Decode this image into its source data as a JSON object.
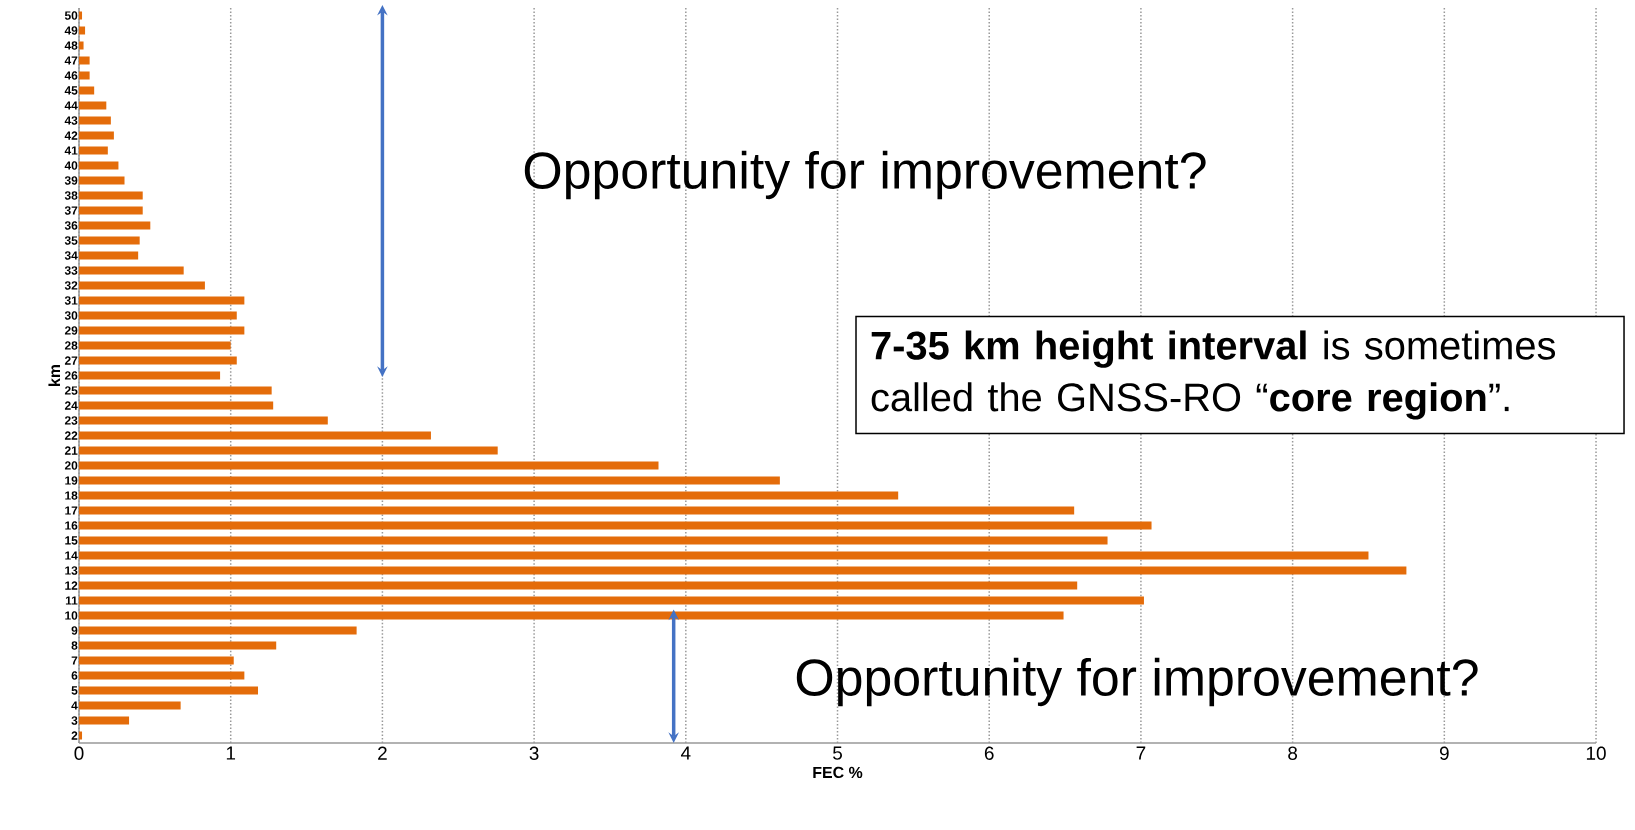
{
  "chart_data": {
    "type": "bar",
    "orientation": "horizontal",
    "xlabel": "FEC %",
    "ylabel": "km",
    "categories": [
      "50",
      "49",
      "48",
      "47",
      "46",
      "45",
      "44",
      "43",
      "42",
      "41",
      "40",
      "39",
      "38",
      "37",
      "36",
      "35",
      "34",
      "33",
      "32",
      "31",
      "30",
      "29",
      "28",
      "27",
      "26",
      "25",
      "24",
      "23",
      "22",
      "21",
      "20",
      "19",
      "18",
      "17",
      "16",
      "15",
      "14",
      "13",
      "12",
      "11",
      "10",
      "9",
      "8",
      "7",
      "6",
      "5",
      "4",
      "3",
      "2"
    ],
    "values": [
      0.02,
      0.04,
      0.03,
      0.07,
      0.07,
      0.1,
      0.18,
      0.21,
      0.23,
      0.19,
      0.26,
      0.3,
      0.42,
      0.42,
      0.47,
      0.4,
      0.39,
      0.69,
      0.83,
      1.09,
      1.04,
      1.09,
      1.0,
      1.04,
      0.93,
      1.27,
      1.28,
      1.64,
      2.32,
      2.76,
      3.82,
      4.62,
      5.4,
      6.56,
      7.07,
      6.78,
      8.5,
      8.75,
      6.58,
      7.02,
      6.49,
      1.83,
      1.3,
      1.02,
      1.09,
      1.18,
      0.67,
      0.33,
      0.02
    ],
    "color": "#e46c0a",
    "xlim": [
      0,
      10
    ],
    "xticks": [
      0,
      1,
      2,
      3,
      4,
      5,
      6,
      7,
      8,
      9,
      10
    ],
    "grid": "x",
    "annotations": [
      "Opportunity for improvement?",
      "**7-35 km height interval** is sometimes called the GNSS-RO “**core region**”.",
      "Opportunity for improvement?"
    ]
  }
}
